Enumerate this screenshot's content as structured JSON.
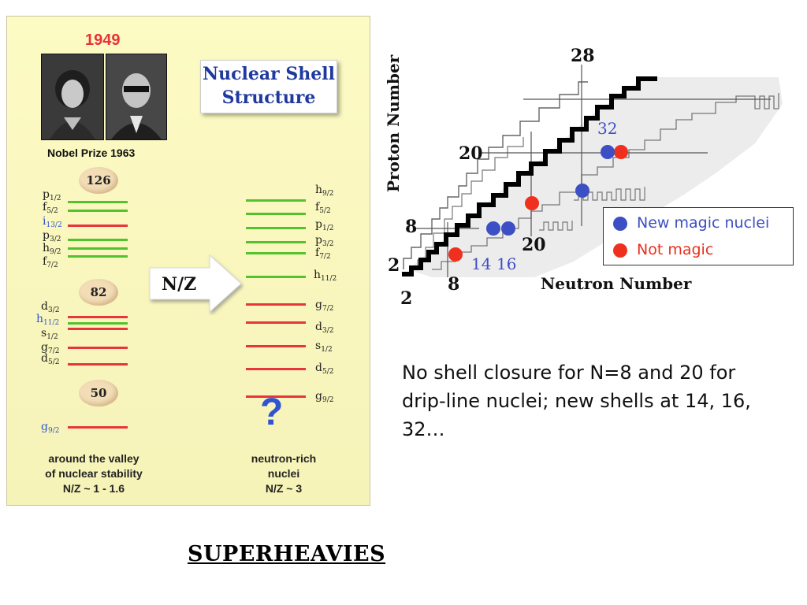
{
  "left_panel": {
    "year": "1949",
    "nobel": "Nobel Prize 1963",
    "title_line1": "Nuclear Shell",
    "title_line2": "Structure",
    "magic_numbers": [
      "126",
      "82",
      "50"
    ],
    "arrow_label": "N/Z",
    "question_mark": "?",
    "left_levels": [
      {
        "name": "p",
        "sub": "1/2"
      },
      {
        "name": "f",
        "sub": "5/2"
      },
      {
        "name": "i",
        "sub": "13/2"
      },
      {
        "name": "p",
        "sub": "3/2"
      },
      {
        "name": "h",
        "sub": "9/2"
      },
      {
        "name": "f",
        "sub": "7/2"
      },
      {
        "name": "d",
        "sub": "3/2"
      },
      {
        "name": "h",
        "sub": "11/2"
      },
      {
        "name": "s",
        "sub": "1/2"
      },
      {
        "name": "g",
        "sub": "7/2"
      },
      {
        "name": "d",
        "sub": "5/2"
      },
      {
        "name": "g",
        "sub": "9/2"
      }
    ],
    "right_levels": [
      {
        "name": "h",
        "sub": "9/2"
      },
      {
        "name": "f",
        "sub": "5/2"
      },
      {
        "name": "p",
        "sub": "1/2"
      },
      {
        "name": "p",
        "sub": "3/2"
      },
      {
        "name": "f",
        "sub": "7/2"
      },
      {
        "name": "h",
        "sub": "11/2"
      },
      {
        "name": "g",
        "sub": "7/2"
      },
      {
        "name": "d",
        "sub": "3/2"
      },
      {
        "name": "s",
        "sub": "1/2"
      },
      {
        "name": "d",
        "sub": "5/2"
      },
      {
        "name": "g",
        "sub": "9/2"
      }
    ],
    "bottom_left_line1": "around the valley",
    "bottom_left_line2": "of nuclear stability",
    "bottom_left_line3": "N/Z ~ 1 - 1.6",
    "bottom_right_line1": "neutron-rich",
    "bottom_right_line2": "nuclei",
    "bottom_right_line3": "N/Z ~ 3"
  },
  "chart": {
    "ylabel": "Proton Number",
    "xlabel": "Neutron Number",
    "labels": {
      "n28": "28",
      "n20": "20",
      "n8": "8",
      "n2": "2",
      "n32": "32",
      "n14": "14",
      "n16": "16",
      "x8": "8",
      "x2": "2",
      "x20": "20"
    },
    "legend": {
      "blue_label": "New magic nuclei",
      "red_label": "Not magic",
      "blue_color": "#3d4fc4",
      "red_color": "#f0301e"
    }
  },
  "note_text": "No shell closure for N=8 and 20 for drip-line nuclei; new shells at 14, 16, 32…",
  "superheavies": "SUPERHEAVIES"
}
